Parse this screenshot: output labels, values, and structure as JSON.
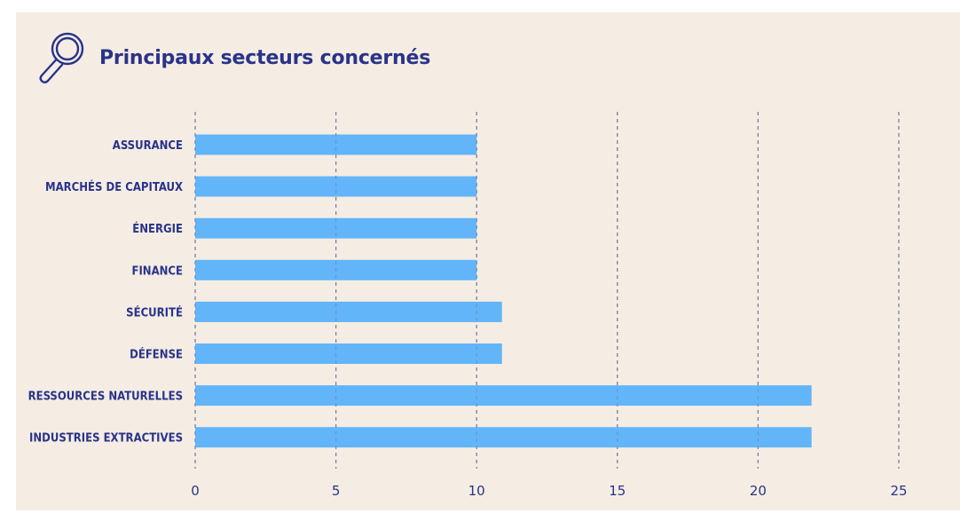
{
  "title": "Principaux secteurs concernés",
  "icon": "magnifier-icon",
  "colors": {
    "background": "#f5ede3",
    "bar": "#62b5f8",
    "text": "#29338a",
    "grid": "#7b7ca6"
  },
  "chart_data": {
    "type": "bar",
    "orientation": "horizontal",
    "categories": [
      "ASSURANCE",
      "MARCHÉS DE CAPITAUX",
      "ÉNERGIE",
      "FINANCE",
      "SÉCURITÉ",
      "DÉFENSE",
      "RESSOURCES NATURELLES",
      "INDUSTRIES EXTRACTIVES"
    ],
    "values": [
      10,
      10,
      10,
      10,
      10.9,
      10.9,
      21.9,
      21.9
    ],
    "xlim": [
      0,
      25
    ],
    "xticks": [
      0,
      5,
      10,
      15,
      20,
      25
    ],
    "xlabel": "",
    "ylabel": "",
    "grid": "vertical dashed",
    "legend": "none"
  }
}
